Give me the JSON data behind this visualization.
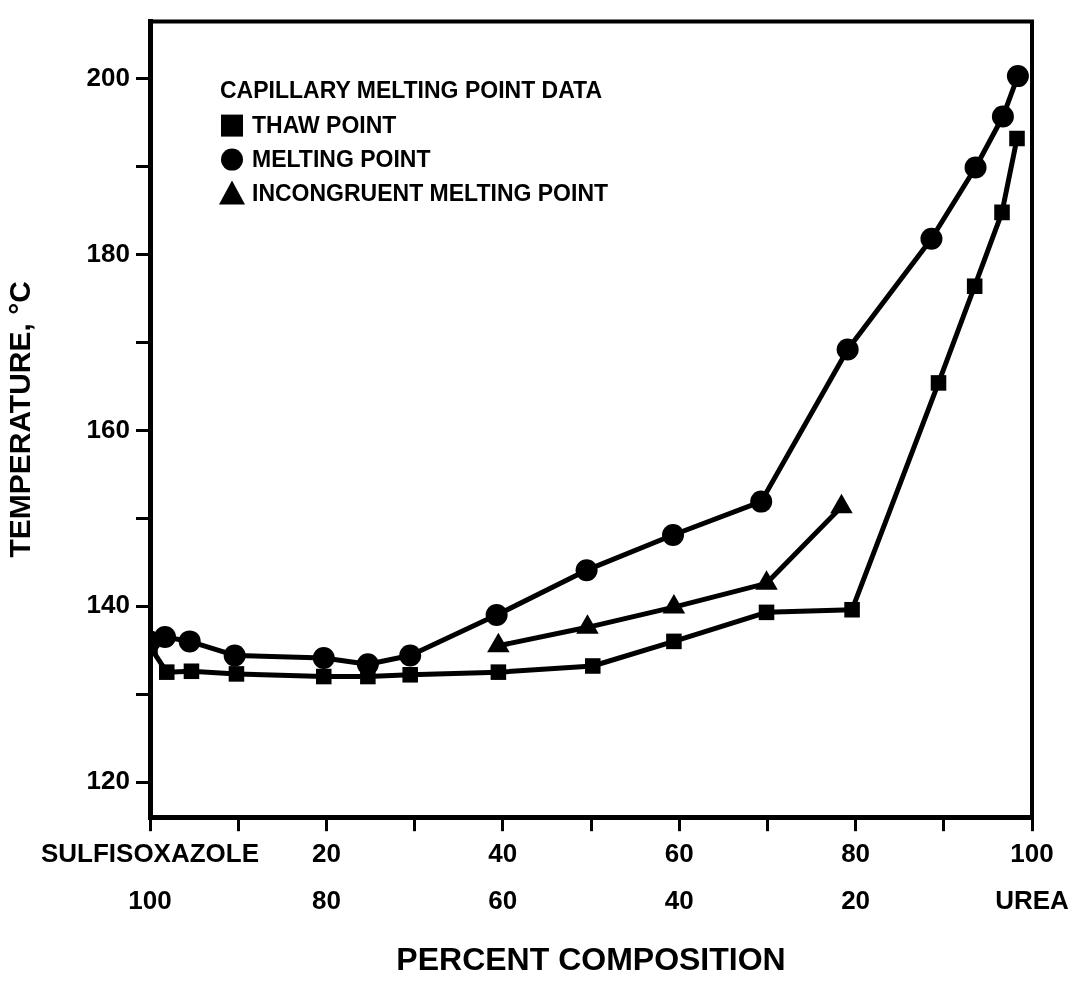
{
  "chart_data": {
    "type": "line",
    "xlabel": "PERCENT COMPOSITION",
    "ylabel": "TEMPERATURE, °C",
    "legend_title": "CAPILLARY MELTING POINT DATA",
    "xlim": [
      0,
      100
    ],
    "xticks": [
      {
        "value": 0,
        "label": "SULFISOXAZOLE"
      },
      {
        "value": 10,
        "label": null
      },
      20,
      {
        "value": 30,
        "label": null
      },
      40,
      {
        "value": 50,
        "label": null
      },
      60,
      {
        "value": 70,
        "label": null
      },
      80,
      {
        "value": 90,
        "label": null
      },
      100
    ],
    "x2lim": [
      100,
      0
    ],
    "x2ticks": [
      100,
      80,
      60,
      40,
      20,
      {
        "value": 0,
        "label": "UREA"
      }
    ],
    "ylim": [
      116,
      206.5
    ],
    "yticks": [
      120,
      {
        "value": 130,
        "label": null
      },
      140,
      {
        "value": 150,
        "label": null
      },
      160,
      {
        "value": 170,
        "label": null
      },
      180,
      {
        "value": 190,
        "label": null
      },
      200
    ],
    "grid": false,
    "legend": "top left",
    "line_style": "solid",
    "series": [
      {
        "name": "THAW POINT",
        "color": "#000000",
        "marker": "square",
        "x": [
          0,
          1.9,
          4.7,
          9.8,
          19.7,
          24.7,
          29.5,
          39.5,
          50.2,
          59.4,
          69.9,
          79.6,
          89.4,
          93.5,
          96.6,
          98.3
        ],
        "values": [
          135.4,
          132.5,
          132.6,
          132.3,
          132.0,
          132.0,
          132.2,
          132.5,
          133.2,
          136.0,
          139.3,
          139.6,
          165.4,
          176.4,
          184.8,
          193.2
        ]
      },
      {
        "name": "MELTING POINT",
        "color": "#000000",
        "marker": "circle",
        "x": [
          0,
          1.7,
          4.5,
          9.6,
          19.7,
          24.7,
          29.5,
          39.3,
          49.5,
          59.3,
          69.3,
          79.1,
          88.6,
          93.6,
          96.7,
          98.4
        ],
        "values": [
          136.0,
          136.5,
          136.0,
          134.4,
          134.1,
          133.4,
          134.4,
          139.0,
          144.1,
          148.1,
          151.9,
          169.2,
          181.8,
          189.9,
          195.7,
          200.3
        ]
      },
      {
        "name": "INCONGRUENT MELTING POINT",
        "color": "#000000",
        "marker": "triangle",
        "x": [
          39.5,
          49.6,
          59.4,
          69.9,
          78.4
        ],
        "values": [
          135.5,
          137.6,
          139.9,
          142.6,
          151.3
        ]
      }
    ]
  }
}
